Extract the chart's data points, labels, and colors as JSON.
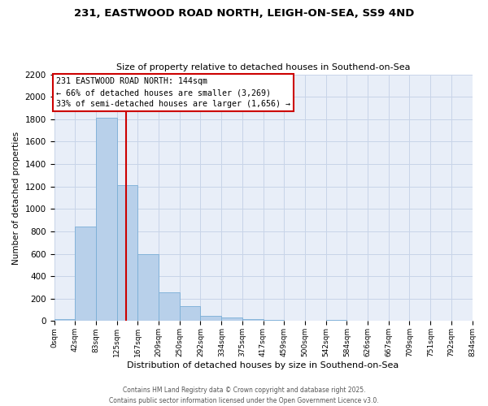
{
  "title": "231, EASTWOOD ROAD NORTH, LEIGH-ON-SEA, SS9 4ND",
  "subtitle": "Size of property relative to detached houses in Southend-on-Sea",
  "xlabel": "Distribution of detached houses by size in Southend-on-Sea",
  "ylabel": "Number of detached properties",
  "bar_edges": [
    0,
    42,
    83,
    125,
    167,
    209,
    250,
    292,
    334,
    375,
    417,
    459,
    500,
    542,
    584,
    626,
    667,
    709,
    751,
    792,
    834
  ],
  "bar_heights": [
    20,
    840,
    1810,
    1210,
    600,
    255,
    130,
    50,
    30,
    20,
    10,
    0,
    0,
    10,
    0,
    0,
    0,
    0,
    0,
    0
  ],
  "bar_color": "#b8d0ea",
  "bar_edgecolor": "#7aaed6",
  "vline_x": 144,
  "vline_color": "#cc0000",
  "annotation_title": "231 EASTWOOD ROAD NORTH: 144sqm",
  "annotation_line2": "← 66% of detached houses are smaller (3,269)",
  "annotation_line3": "33% of semi-detached houses are larger (1,656) →",
  "annotation_box_edgecolor": "#cc0000",
  "annotation_box_facecolor": "#ffffff",
  "ylim": [
    0,
    2200
  ],
  "yticks": [
    0,
    200,
    400,
    600,
    800,
    1000,
    1200,
    1400,
    1600,
    1800,
    2000,
    2200
  ],
  "tick_labels": [
    "0sqm",
    "42sqm",
    "83sqm",
    "125sqm",
    "167sqm",
    "209sqm",
    "250sqm",
    "292sqm",
    "334sqm",
    "375sqm",
    "417sqm",
    "459sqm",
    "500sqm",
    "542sqm",
    "584sqm",
    "626sqm",
    "667sqm",
    "709sqm",
    "751sqm",
    "792sqm",
    "834sqm"
  ],
  "fig_background": "#ffffff",
  "axes_background": "#e8eef8",
  "grid_color": "#c8d4e8",
  "footer_line1": "Contains HM Land Registry data © Crown copyright and database right 2025.",
  "footer_line2": "Contains public sector information licensed under the Open Government Licence v3.0."
}
